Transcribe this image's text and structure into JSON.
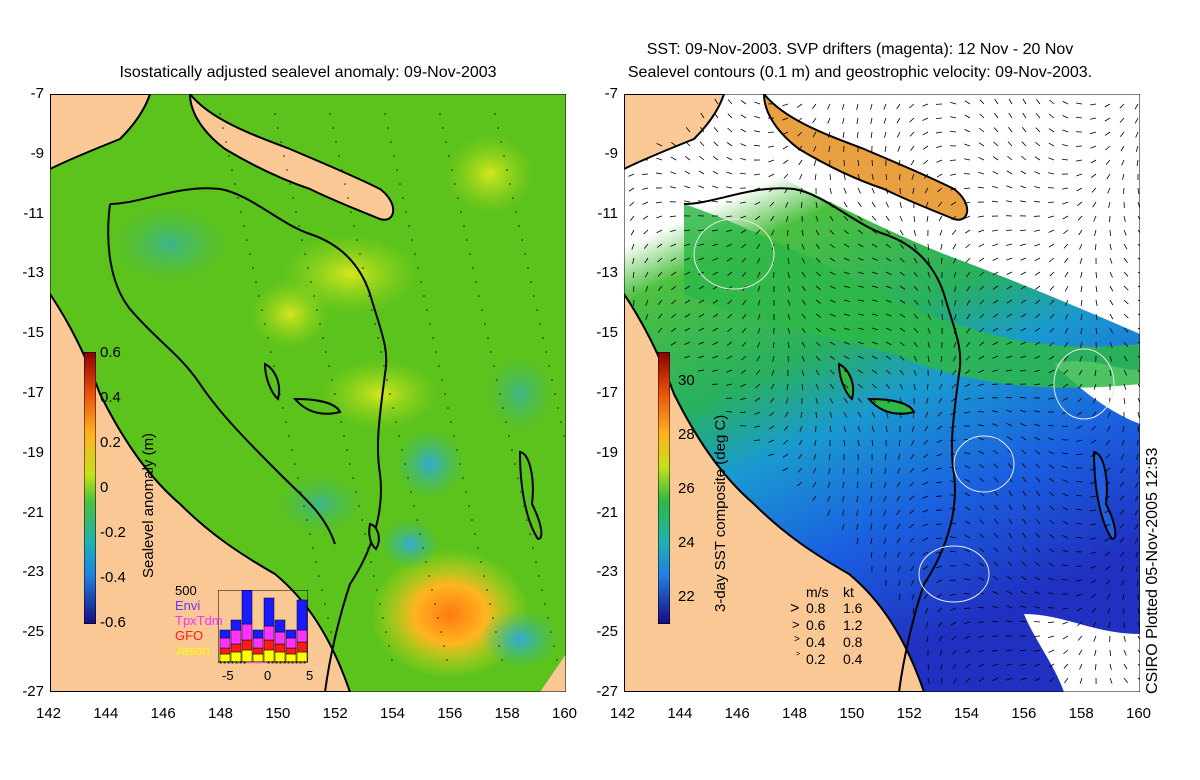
{
  "left_panel": {
    "title": "Isostatically adjusted sealevel anomaly: 09-Nov-2003",
    "colorbar": {
      "label": "Sealevel anomaly (m)",
      "ticks": [
        "0.6",
        "0.4",
        "0.2",
        "0",
        "-0.2",
        "-0.4",
        "-0.6"
      ]
    },
    "inset": {
      "ytick": "500",
      "satellites": [
        {
          "name": "Envi",
          "color": "#6a35ff"
        },
        {
          "name": "TpxTdm",
          "color": "#ff33ff"
        },
        {
          "name": "GFO",
          "color": "#ff1a1a"
        },
        {
          "name": "Jason",
          "color": "#ffff00"
        }
      ],
      "xticks": [
        "-5",
        "0",
        "5"
      ]
    }
  },
  "right_panel": {
    "title_line1": "SST: 09-Nov-2003. SVP drifters (magenta): 12 Nov - 20 Nov",
    "title_line2": "Sealevel contours (0.1 m) and geostrophic velocity: 09-Nov-2003.",
    "colorbar": {
      "label": "3-day SST composite (deg C)",
      "ticks": [
        "30",
        "28",
        "26",
        "24",
        "22"
      ]
    },
    "velocity_legend": {
      "header_ms": "m/s",
      "header_kt": "kt",
      "rows": [
        {
          "ms": "0.8",
          "kt": "1.6"
        },
        {
          "ms": "0.6",
          "kt": "1.2"
        },
        {
          "ms": "0.4",
          "kt": "0.8"
        },
        {
          "ms": "0.2",
          "kt": "0.4"
        }
      ]
    }
  },
  "axes": {
    "yticks": [
      "-7",
      "-9",
      "-11",
      "-13",
      "-15",
      "-17",
      "-19",
      "-21",
      "-23",
      "-25",
      "-27"
    ],
    "xticks": [
      "142",
      "144",
      "146",
      "148",
      "150",
      "152",
      "154",
      "156",
      "158",
      "160"
    ]
  },
  "side_label": "CSIRO Plotted 05-Nov-2005 12:53",
  "colors": {
    "land": "#f9c894",
    "sea_green": "#59c21a",
    "coast": "#000000"
  }
}
